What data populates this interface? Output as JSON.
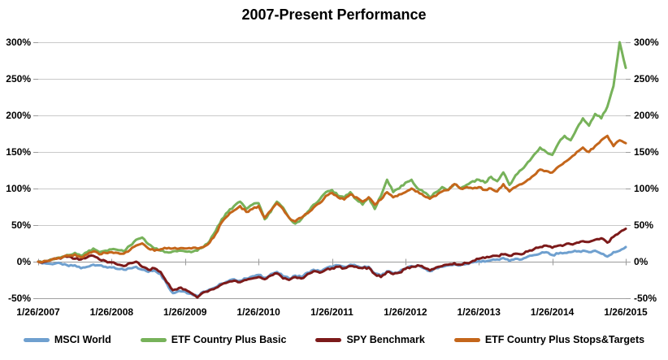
{
  "title": "2007-Present Performance",
  "colors": {
    "msci_world": "#6FA0CF",
    "etf_country_plus_basic": "#77B25A",
    "spy_benchmark": "#7C1A1A",
    "etf_country_plus_stops_targets": "#C4661B",
    "gridline": "#C9C9C9",
    "axis_line": "#A0A0A0",
    "tick": "#9B9B9B",
    "text": "#000000"
  },
  "chart_data": {
    "type": "line",
    "title": "2007-Present Performance",
    "xlabel": "",
    "ylabel": "",
    "units": "percent return",
    "x_start": "1/26/2007",
    "x_end": "1/26/2015",
    "x_interval": "monthly",
    "x_tick_labels": [
      "1/26/2007",
      "1/26/2008",
      "1/26/2009",
      "1/26/2010",
      "1/26/2011",
      "1/26/2012",
      "1/26/2013",
      "1/26/2014",
      "1/26/2015"
    ],
    "y_ticks": [
      300,
      250,
      200,
      150,
      100,
      50,
      0,
      -50
    ],
    "y_tick_labels": [
      "300%",
      "250%",
      "200%",
      "150%",
      "100%",
      "50%",
      "0%",
      "-50%"
    ],
    "ylim": [
      -50,
      300
    ],
    "grid": "horizontal",
    "y_axis_sides": "both",
    "legend_position": "bottom",
    "series": [
      {
        "name": "MSCI World",
        "color": "#6FA0CF",
        "values": [
          0,
          -2,
          -3,
          -2,
          -4,
          -6,
          -5,
          -9,
          -7,
          -4,
          -5,
          -7,
          -8,
          -10,
          -11,
          -9,
          -7,
          -11,
          -14,
          -12,
          -17,
          -30,
          -43,
          -40,
          -41,
          -44,
          -47,
          -41,
          -38,
          -35,
          -30,
          -27,
          -24,
          -26,
          -23,
          -20,
          -18,
          -22,
          -17,
          -14,
          -20,
          -23,
          -19,
          -21,
          -15,
          -11,
          -13,
          -9,
          -7,
          -5,
          -7,
          -4,
          -6,
          -8,
          -7,
          -16,
          -19,
          -13,
          -16,
          -14,
          -9,
          -6,
          -5,
          -9,
          -13,
          -9,
          -7,
          -5,
          -4,
          -5,
          -3,
          -1,
          1,
          0,
          2,
          3,
          5,
          1,
          4,
          3,
          7,
          9,
          11,
          13,
          9,
          11,
          12,
          13,
          14,
          15,
          13,
          15,
          11,
          7,
          13,
          15,
          20
        ]
      },
      {
        "name": "ETF Country Plus Basic",
        "color": "#77B25A",
        "values": [
          0,
          1,
          3,
          5,
          7,
          9,
          12,
          8,
          13,
          18,
          13,
          15,
          17,
          16,
          14,
          22,
          30,
          33,
          24,
          18,
          15,
          13,
          14,
          15,
          14,
          13,
          15,
          20,
          28,
          42,
          58,
          68,
          76,
          82,
          72,
          78,
          80,
          58,
          68,
          82,
          74,
          60,
          52,
          58,
          68,
          78,
          85,
          95,
          98,
          90,
          88,
          95,
          85,
          78,
          88,
          72,
          90,
          112,
          95,
          100,
          108,
          112,
          100,
          95,
          88,
          95,
          102,
          98,
          106,
          100,
          105,
          110,
          112,
          108,
          116,
          110,
          122,
          105,
          118,
          126,
          136,
          146,
          156,
          150,
          146,
          162,
          172,
          166,
          182,
          196,
          186,
          202,
          196,
          212,
          240,
          300,
          265
        ]
      },
      {
        "name": "SPY Benchmark",
        "color": "#7C1A1A",
        "values": [
          0,
          0,
          2,
          4,
          6,
          7,
          4,
          3,
          6,
          8,
          3,
          1,
          -1,
          -4,
          -6,
          -2,
          0,
          -7,
          -11,
          -9,
          -14,
          -28,
          -39,
          -36,
          -38,
          -43,
          -49,
          -42,
          -39,
          -36,
          -31,
          -28,
          -26,
          -28,
          -25,
          -23,
          -21,
          -24,
          -19,
          -16,
          -23,
          -25,
          -21,
          -23,
          -17,
          -13,
          -15,
          -11,
          -9,
          -7,
          -9,
          -6,
          -7,
          -9,
          -8,
          -17,
          -21,
          -14,
          -17,
          -15,
          -10,
          -7,
          -5,
          -8,
          -12,
          -8,
          -6,
          -4,
          -2,
          -4,
          -2,
          1,
          4,
          5,
          7,
          8,
          10,
          8,
          11,
          10,
          14,
          17,
          20,
          22,
          19,
          22,
          23,
          24,
          26,
          28,
          27,
          30,
          32,
          26,
          34,
          40,
          45
        ]
      },
      {
        "name": "ETF Country Plus Stops&Targets",
        "color": "#C4661B",
        "values": [
          0,
          1,
          2,
          4,
          6,
          8,
          10,
          6,
          10,
          14,
          10,
          12,
          13,
          12,
          11,
          16,
          22,
          25,
          18,
          15,
          17,
          18,
          18,
          18,
          18,
          18,
          18,
          20,
          26,
          38,
          54,
          63,
          70,
          76,
          68,
          72,
          76,
          60,
          70,
          80,
          72,
          60,
          55,
          60,
          66,
          74,
          80,
          90,
          94,
          88,
          85,
          92,
          88,
          82,
          88,
          78,
          85,
          95,
          88,
          92,
          95,
          100,
          96,
          90,
          86,
          90,
          96,
          98,
          106,
          100,
          102,
          100,
          102,
          98,
          100,
          96,
          106,
          96,
          102,
          106,
          112,
          118,
          126,
          124,
          122,
          130,
          136,
          142,
          150,
          156,
          150,
          158,
          166,
          172,
          158,
          166,
          162
        ]
      }
    ]
  }
}
